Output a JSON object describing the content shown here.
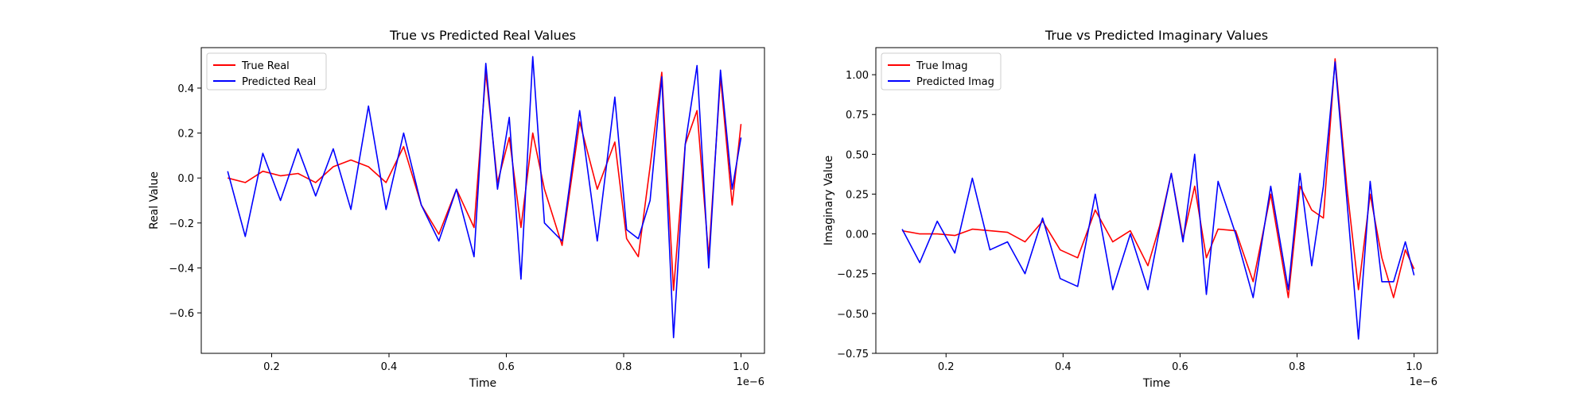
{
  "chart_data": [
    {
      "type": "line",
      "title": "True vs Predicted Real Values",
      "xlabel": "Time",
      "ylabel": "Real Value",
      "x_scale_label": "1e−6",
      "x_ticks": [
        "0.2",
        "0.4",
        "0.6",
        "0.8",
        "1.0"
      ],
      "y_ticks": [
        "−0.6",
        "−0.4",
        "−0.2",
        "0.0",
        "0.2",
        "0.4"
      ],
      "xlim": [
        0.08,
        1.04
      ],
      "ylim": [
        -0.78,
        0.58
      ],
      "legend_position": "upper-left",
      "grid": false,
      "x": [
        0.125,
        0.155,
        0.185,
        0.215,
        0.245,
        0.275,
        0.305,
        0.335,
        0.365,
        0.395,
        0.425,
        0.455,
        0.485,
        0.515,
        0.545,
        0.565,
        0.585,
        0.605,
        0.625,
        0.645,
        0.665,
        0.695,
        0.725,
        0.755,
        0.785,
        0.805,
        0.825,
        0.845,
        0.865,
        0.885,
        0.905,
        0.925,
        0.945,
        0.965,
        0.985,
        1.0
      ],
      "series": [
        {
          "name": "True Real",
          "color": "#ff0000",
          "values": [
            0.0,
            -0.02,
            0.03,
            0.01,
            0.02,
            -0.02,
            0.05,
            0.08,
            0.05,
            -0.02,
            0.14,
            -0.12,
            -0.25,
            -0.05,
            -0.22,
            0.47,
            -0.02,
            0.18,
            -0.22,
            0.2,
            -0.05,
            -0.3,
            0.25,
            -0.05,
            0.16,
            -0.27,
            -0.35,
            0.05,
            0.47,
            -0.5,
            0.15,
            0.3,
            -0.35,
            0.45,
            -0.12,
            0.24
          ]
        },
        {
          "name": "Predicted Real",
          "color": "#0000ff",
          "values": [
            0.03,
            -0.26,
            0.11,
            -0.1,
            0.13,
            -0.08,
            0.13,
            -0.14,
            0.32,
            -0.14,
            0.2,
            -0.12,
            -0.28,
            -0.05,
            -0.35,
            0.51,
            -0.05,
            0.27,
            -0.45,
            0.54,
            -0.2,
            -0.28,
            0.3,
            -0.28,
            0.36,
            -0.23,
            -0.27,
            -0.1,
            0.45,
            -0.71,
            0.15,
            0.5,
            -0.4,
            0.48,
            -0.05,
            0.18
          ]
        }
      ]
    },
    {
      "type": "line",
      "title": "True vs Predicted Imaginary Values",
      "xlabel": "Time",
      "ylabel": "Imaginary Value",
      "x_scale_label": "1e−6",
      "x_ticks": [
        "0.2",
        "0.4",
        "0.6",
        "0.8",
        "1.0"
      ],
      "y_ticks": [
        "−0.75",
        "−0.50",
        "−0.25",
        "0.00",
        "0.25",
        "0.50",
        "0.75",
        "1.00"
      ],
      "xlim": [
        0.08,
        1.04
      ],
      "ylim": [
        -0.75,
        1.17
      ],
      "legend_position": "upper-left",
      "grid": false,
      "x": [
        0.125,
        0.155,
        0.185,
        0.215,
        0.245,
        0.275,
        0.305,
        0.335,
        0.365,
        0.395,
        0.425,
        0.455,
        0.485,
        0.515,
        0.545,
        0.565,
        0.585,
        0.605,
        0.625,
        0.645,
        0.665,
        0.695,
        0.725,
        0.755,
        0.785,
        0.805,
        0.825,
        0.845,
        0.865,
        0.885,
        0.905,
        0.925,
        0.945,
        0.965,
        0.985,
        1.0
      ],
      "series": [
        {
          "name": "True Imag",
          "color": "#ff0000",
          "values": [
            0.02,
            0.0,
            0.0,
            -0.01,
            0.03,
            0.02,
            0.01,
            -0.05,
            0.08,
            -0.1,
            -0.15,
            0.15,
            -0.05,
            0.02,
            -0.2,
            0.05,
            0.38,
            -0.03,
            0.3,
            -0.15,
            0.03,
            0.02,
            -0.3,
            0.25,
            -0.4,
            0.3,
            0.15,
            0.1,
            1.1,
            0.3,
            -0.35,
            0.25,
            -0.15,
            -0.4,
            -0.1,
            -0.22
          ]
        },
        {
          "name": "Predicted Imag",
          "color": "#0000ff",
          "values": [
            0.03,
            -0.18,
            0.08,
            -0.12,
            0.35,
            -0.1,
            -0.05,
            -0.25,
            0.1,
            -0.28,
            -0.33,
            0.25,
            -0.35,
            0.0,
            -0.35,
            0.03,
            0.38,
            -0.05,
            0.5,
            -0.38,
            0.33,
            0.0,
            -0.4,
            0.3,
            -0.35,
            0.38,
            -0.2,
            0.3,
            1.08,
            0.22,
            -0.66,
            0.33,
            -0.3,
            -0.3,
            -0.05,
            -0.26
          ]
        }
      ]
    }
  ]
}
